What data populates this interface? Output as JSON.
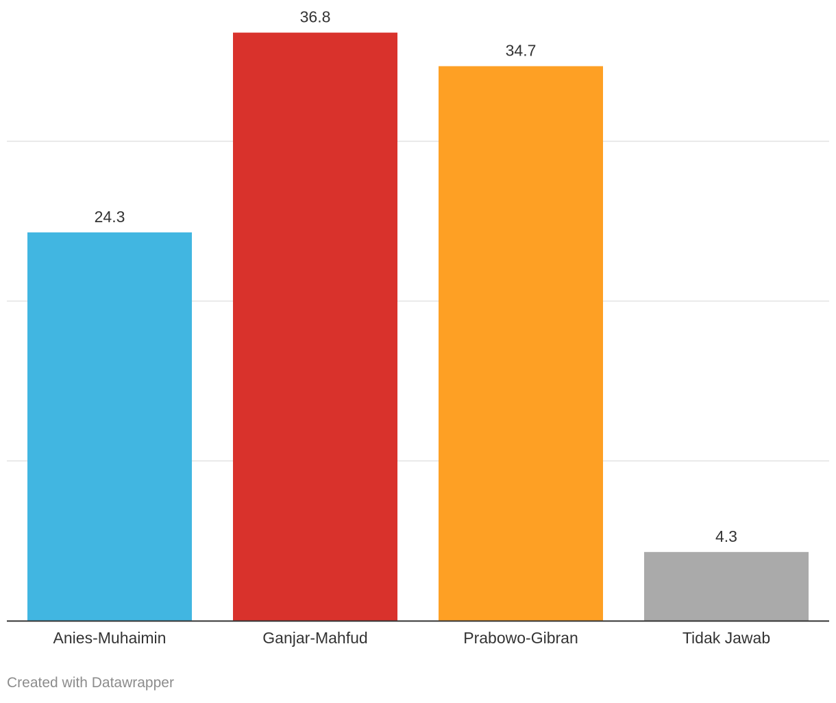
{
  "chart_data": {
    "type": "bar",
    "categories": [
      "Anies-Muhaimin",
      "Ganjar-Mahfud",
      "Prabowo-Gibran",
      "Tidak Jawab"
    ],
    "values": [
      24.3,
      36.8,
      34.7,
      4.3
    ],
    "data_labels": [
      "24.3",
      "36.8",
      "34.7",
      "4.3"
    ],
    "colors": [
      "#41b6e1",
      "#d9322c",
      "#fea024",
      "#aaaaaa"
    ],
    "ylim": [
      0,
      30
    ],
    "gridlines": [
      10,
      20,
      30
    ],
    "grid": true,
    "legend": "none"
  },
  "footer": {
    "credit": "Created with Datawrapper"
  }
}
